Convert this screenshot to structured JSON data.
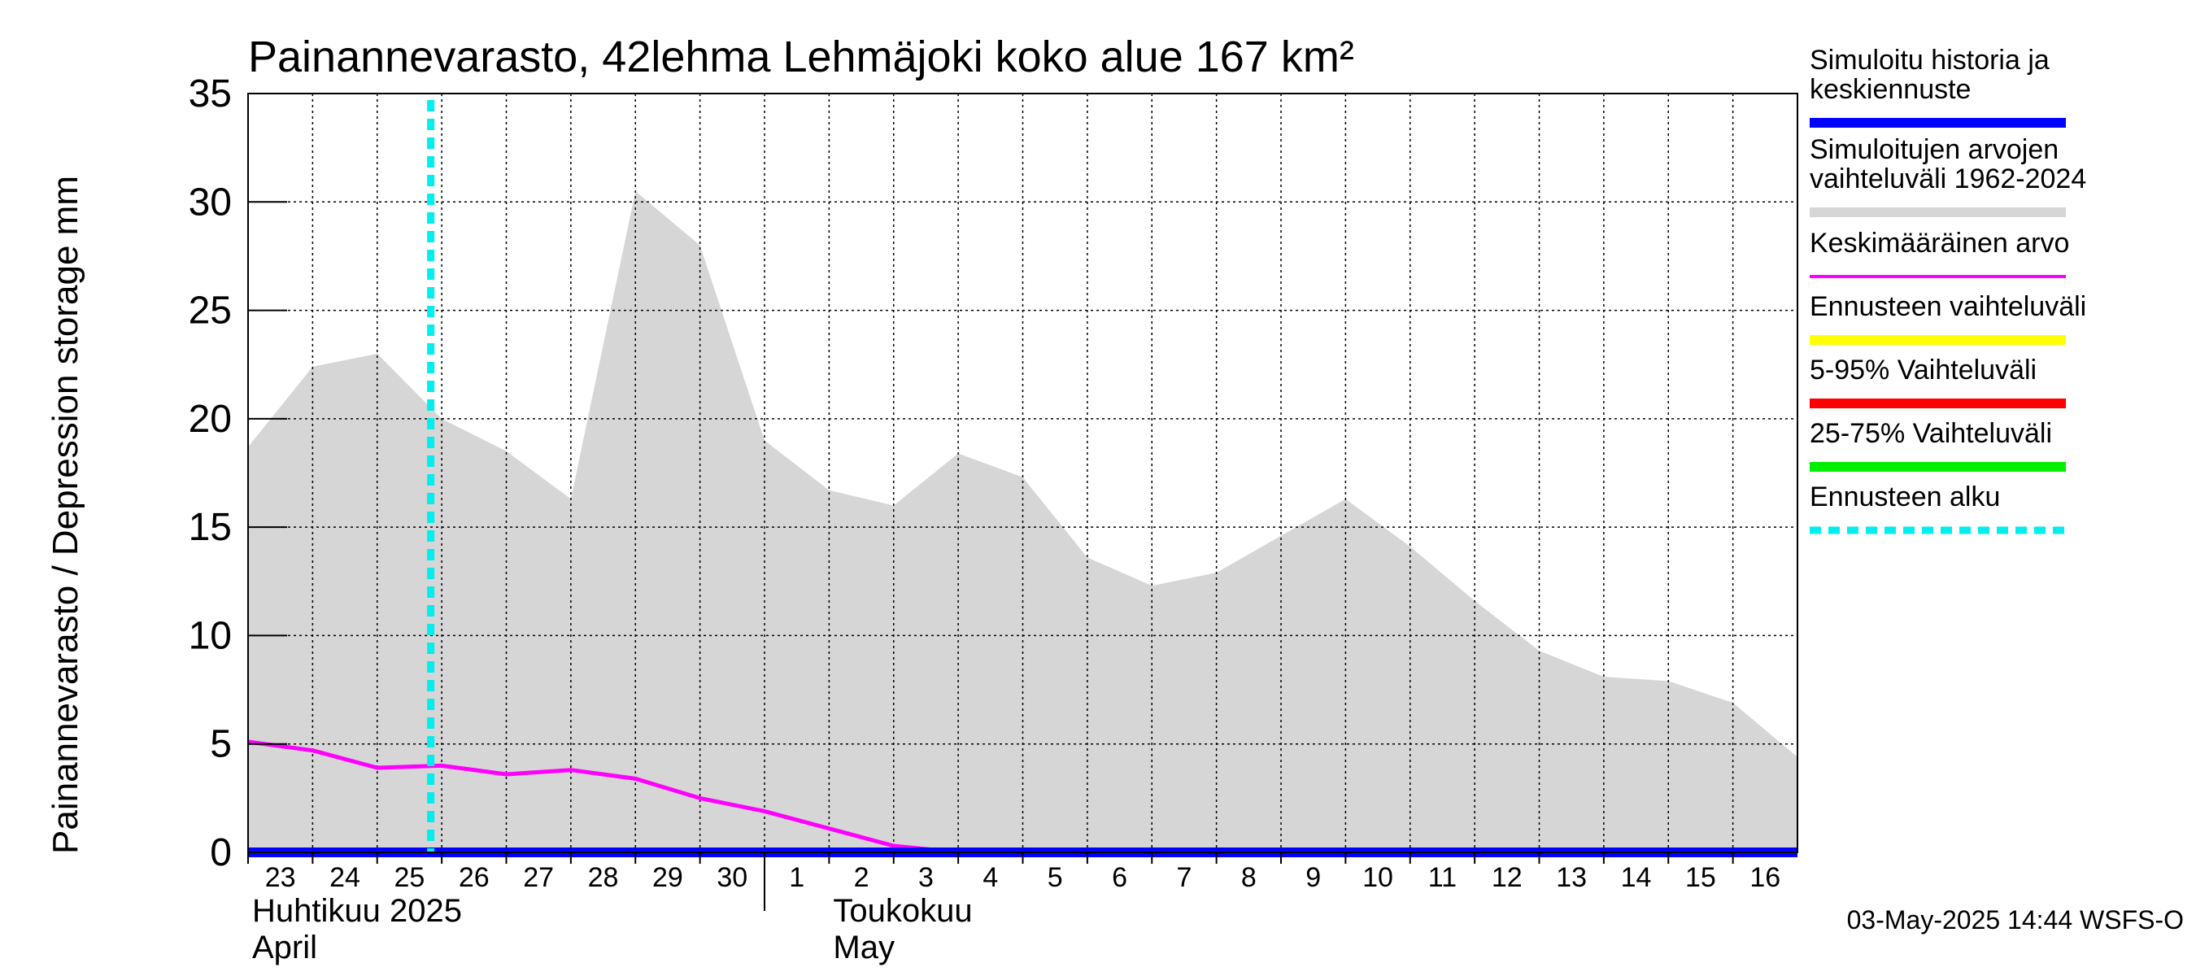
{
  "chart_data": {
    "type": "area",
    "title": "Painannevarasto, 42lehma Lehmäjoki koko alue 167 km²",
    "ylabel": "Painannevarasto / Depression storage    mm",
    "ylim": [
      0,
      35
    ],
    "yticks": [
      "0",
      "5",
      "10",
      "15",
      "20",
      "25",
      "30",
      "35"
    ],
    "x_days": [
      "23",
      "24",
      "25",
      "26",
      "27",
      "28",
      "29",
      "30",
      "1",
      "2",
      "3",
      "4",
      "5",
      "6",
      "7",
      "8",
      "9",
      "10",
      "11",
      "12",
      "13",
      "14",
      "15",
      "16"
    ],
    "month_labels": [
      {
        "fi": "Huhtikuu  2025",
        "en": "April"
      },
      {
        "fi": "Toukokuu",
        "en": "May"
      }
    ],
    "forecast_start_day": 2.83,
    "series": [
      {
        "name": "Simuloitujen arvojen vaihteluväli 1962-2024",
        "color": "#d6d6d6",
        "kind": "band",
        "x": [
          0,
          1,
          2,
          3,
          4,
          5,
          6,
          7,
          8,
          9,
          10,
          11,
          12,
          13,
          14,
          15,
          16,
          17,
          18,
          19,
          20,
          21,
          22,
          23,
          24
        ],
        "upper": [
          18.7,
          22.4,
          23.0,
          20.0,
          18.5,
          16.3,
          30.5,
          28.0,
          19.0,
          16.7,
          16.0,
          18.4,
          17.3,
          13.6,
          12.3,
          12.9,
          14.6,
          16.3,
          14.1,
          11.6,
          9.3,
          8.1,
          7.9,
          6.9,
          4.4
        ],
        "lower": [
          0,
          0,
          0,
          0,
          0,
          0,
          0,
          0,
          0,
          0,
          0,
          0,
          0,
          0,
          0,
          0,
          0,
          0,
          0,
          0,
          0,
          0,
          0,
          0,
          0
        ]
      },
      {
        "name": "Keskimääräinen arvo",
        "color": "#ff00ff",
        "kind": "line",
        "x": [
          0,
          1,
          2,
          3,
          4,
          5,
          6,
          7,
          8,
          9,
          10,
          11,
          12,
          13,
          14,
          15,
          16,
          17,
          18,
          19,
          20,
          21,
          22,
          23,
          24
        ],
        "values": [
          5.1,
          4.7,
          3.9,
          4.0,
          3.6,
          3.8,
          3.4,
          2.5,
          1.9,
          1.1,
          0.3,
          0.0,
          -0.05,
          -0.05,
          -0.05,
          -0.05,
          -0.05,
          -0.05,
          -0.05,
          -0.05,
          -0.05,
          -0.05,
          -0.05,
          -0.05,
          -0.05
        ]
      },
      {
        "name": "Simuloitu historia ja keskiennuste",
        "color": "#0000ff",
        "kind": "line",
        "x": [
          0,
          24
        ],
        "values": [
          0,
          0
        ]
      }
    ],
    "legend": [
      {
        "label": "Simuloitu historia ja keskiennuste",
        "color": "#0000ff",
        "style": "solid"
      },
      {
        "label": "Simuloitujen arvojen vaihteluväli 1962-2024",
        "color": "#d6d6d6",
        "style": "solid"
      },
      {
        "label": "Keskimääräinen arvo",
        "color": "#ff00ff",
        "style": "thin"
      },
      {
        "label": "Ennusteen vaihteluväli",
        "color": "#ffff00",
        "style": "solid"
      },
      {
        "label": "5-95% Vaihteluväli",
        "color": "#ff0000",
        "style": "solid"
      },
      {
        "label": "25-75% Vaihteluväli",
        "color": "#00ee00",
        "style": "solid"
      },
      {
        "label": "Ennusteen alku",
        "color": "#00eeee",
        "style": "dashed"
      }
    ],
    "footer": "03-May-2025 14:44 WSFS-O"
  }
}
